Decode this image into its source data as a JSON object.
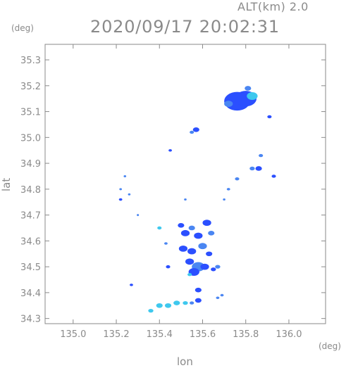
{
  "header": {
    "alt_label": "ALT(km)  2.0",
    "datetime": "2020/09/17 20:02:31"
  },
  "chart_data": {
    "type": "scatter",
    "title": "2020/09/17 20:02:31",
    "xlabel": "lon",
    "ylabel": "lat",
    "x_unit": "(deg)",
    "y_unit": "(deg)",
    "xlim": [
      134.87,
      136.17
    ],
    "ylim": [
      34.28,
      35.36
    ],
    "xticks": [
      "135.0",
      "135.2",
      "135.4",
      "135.6",
      "135.8",
      "136.0"
    ],
    "yticks": [
      "34.3",
      "34.4",
      "34.5",
      "34.6",
      "34.7",
      "34.8",
      "34.9",
      "35.0",
      "35.1",
      "35.2",
      "35.3"
    ],
    "grid": false,
    "colors": {
      "strong": "#2b4fff",
      "medium": "#4a86f2",
      "light": "#3ec8ee",
      "axis": "#8a8a8a"
    },
    "cells": [
      {
        "lon": 135.76,
        "lat": 35.14,
        "size": 0.06,
        "level": "strong"
      },
      {
        "lon": 135.8,
        "lat": 35.15,
        "size": 0.05,
        "level": "strong"
      },
      {
        "lon": 135.83,
        "lat": 35.16,
        "size": 0.025,
        "level": "light"
      },
      {
        "lon": 135.81,
        "lat": 35.19,
        "size": 0.015,
        "level": "medium"
      },
      {
        "lon": 135.72,
        "lat": 35.13,
        "size": 0.02,
        "level": "medium"
      },
      {
        "lon": 135.91,
        "lat": 35.08,
        "size": 0.01,
        "level": "strong"
      },
      {
        "lon": 135.57,
        "lat": 35.03,
        "size": 0.015,
        "level": "strong"
      },
      {
        "lon": 135.55,
        "lat": 35.02,
        "size": 0.01,
        "level": "medium"
      },
      {
        "lon": 135.45,
        "lat": 34.95,
        "size": 0.008,
        "level": "strong"
      },
      {
        "lon": 135.87,
        "lat": 34.93,
        "size": 0.01,
        "level": "medium"
      },
      {
        "lon": 135.86,
        "lat": 34.88,
        "size": 0.015,
        "level": "strong"
      },
      {
        "lon": 135.83,
        "lat": 34.88,
        "size": 0.012,
        "level": "medium"
      },
      {
        "lon": 135.93,
        "lat": 34.85,
        "size": 0.01,
        "level": "strong"
      },
      {
        "lon": 135.76,
        "lat": 34.84,
        "size": 0.01,
        "level": "medium"
      },
      {
        "lon": 135.72,
        "lat": 34.8,
        "size": 0.008,
        "level": "medium"
      },
      {
        "lon": 135.7,
        "lat": 34.76,
        "size": 0.006,
        "level": "medium"
      },
      {
        "lon": 135.24,
        "lat": 34.85,
        "size": 0.006,
        "level": "medium"
      },
      {
        "lon": 135.22,
        "lat": 34.8,
        "size": 0.006,
        "level": "medium"
      },
      {
        "lon": 135.26,
        "lat": 34.78,
        "size": 0.006,
        "level": "medium"
      },
      {
        "lon": 135.22,
        "lat": 34.76,
        "size": 0.008,
        "level": "strong"
      },
      {
        "lon": 135.3,
        "lat": 34.7,
        "size": 0.005,
        "level": "medium"
      },
      {
        "lon": 135.52,
        "lat": 34.76,
        "size": 0.006,
        "level": "medium"
      },
      {
        "lon": 135.4,
        "lat": 34.65,
        "size": 0.01,
        "level": "light"
      },
      {
        "lon": 135.43,
        "lat": 34.59,
        "size": 0.008,
        "level": "medium"
      },
      {
        "lon": 135.5,
        "lat": 34.66,
        "size": 0.015,
        "level": "strong"
      },
      {
        "lon": 135.52,
        "lat": 34.63,
        "size": 0.02,
        "level": "strong"
      },
      {
        "lon": 135.55,
        "lat": 34.65,
        "size": 0.015,
        "level": "medium"
      },
      {
        "lon": 135.58,
        "lat": 34.62,
        "size": 0.02,
        "level": "strong"
      },
      {
        "lon": 135.62,
        "lat": 34.67,
        "size": 0.02,
        "level": "strong"
      },
      {
        "lon": 135.64,
        "lat": 34.63,
        "size": 0.015,
        "level": "medium"
      },
      {
        "lon": 135.51,
        "lat": 34.57,
        "size": 0.02,
        "level": "strong"
      },
      {
        "lon": 135.55,
        "lat": 34.56,
        "size": 0.02,
        "level": "strong"
      },
      {
        "lon": 135.6,
        "lat": 34.58,
        "size": 0.02,
        "level": "medium"
      },
      {
        "lon": 135.63,
        "lat": 34.55,
        "size": 0.015,
        "level": "strong"
      },
      {
        "lon": 135.54,
        "lat": 34.52,
        "size": 0.02,
        "level": "strong"
      },
      {
        "lon": 135.58,
        "lat": 34.5,
        "size": 0.03,
        "level": "medium"
      },
      {
        "lon": 135.56,
        "lat": 34.48,
        "size": 0.025,
        "level": "strong"
      },
      {
        "lon": 135.61,
        "lat": 34.5,
        "size": 0.02,
        "level": "strong"
      },
      {
        "lon": 135.65,
        "lat": 34.49,
        "size": 0.012,
        "level": "strong"
      },
      {
        "lon": 135.67,
        "lat": 34.5,
        "size": 0.012,
        "level": "medium"
      },
      {
        "lon": 135.44,
        "lat": 34.5,
        "size": 0.01,
        "level": "strong"
      },
      {
        "lon": 135.54,
        "lat": 34.47,
        "size": 0.01,
        "level": "light"
      },
      {
        "lon": 135.58,
        "lat": 34.41,
        "size": 0.015,
        "level": "strong"
      },
      {
        "lon": 135.67,
        "lat": 34.38,
        "size": 0.008,
        "level": "medium"
      },
      {
        "lon": 135.69,
        "lat": 34.39,
        "size": 0.008,
        "level": "medium"
      },
      {
        "lon": 135.58,
        "lat": 34.37,
        "size": 0.015,
        "level": "strong"
      },
      {
        "lon": 135.27,
        "lat": 34.43,
        "size": 0.008,
        "level": "strong"
      },
      {
        "lon": 135.36,
        "lat": 34.33,
        "size": 0.012,
        "level": "light"
      },
      {
        "lon": 135.4,
        "lat": 34.35,
        "size": 0.015,
        "level": "light"
      },
      {
        "lon": 135.44,
        "lat": 34.35,
        "size": 0.015,
        "level": "light"
      },
      {
        "lon": 135.48,
        "lat": 34.36,
        "size": 0.015,
        "level": "light"
      },
      {
        "lon": 135.52,
        "lat": 34.36,
        "size": 0.012,
        "level": "light"
      },
      {
        "lon": 135.55,
        "lat": 34.36,
        "size": 0.01,
        "level": "medium"
      }
    ]
  }
}
